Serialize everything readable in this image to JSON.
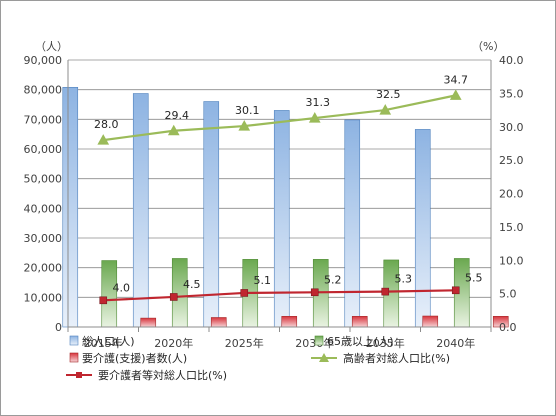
{
  "chart_data": {
    "type": "bar",
    "categories": [
      "2015年",
      "2020年",
      "2025年",
      "2030年",
      "2035年",
      "2040年"
    ],
    "left_unit": "（人）",
    "right_unit": "（%）",
    "ylim_left": [
      0,
      90000
    ],
    "ylim_right": [
      0,
      40
    ],
    "yticks_left": [
      "0",
      "10,000",
      "20,000",
      "30,000",
      "40,000",
      "50,000",
      "60,000",
      "70,000",
      "80,000",
      "90,000"
    ],
    "yticks_right": [
      "0.0",
      "5.0",
      "10.0",
      "15.0",
      "20.0",
      "25.0",
      "30.0",
      "35.0",
      "40.0"
    ],
    "grid": true,
    "legend_position": "bottom",
    "bar_series": [
      {
        "name": "総人口(人)",
        "color": "#8eb4e3",
        "values": [
          80800,
          78700,
          76000,
          73000,
          69800,
          66600
        ]
      },
      {
        "name": "65歳以上(人)",
        "color": "#77b05c",
        "values": [
          22400,
          23100,
          22800,
          22800,
          22600,
          23100
        ]
      },
      {
        "name": "要介護(支援)者数(人)",
        "color": "#e0525a",
        "values": [
          3000,
          3200,
          3600,
          3600,
          3700,
          3600
        ]
      }
    ],
    "line_series": [
      {
        "name": "高齢者対総人口比(%)",
        "color": "#9bbb59",
        "marker": "triangle",
        "values": [
          28.0,
          29.4,
          30.1,
          31.3,
          32.5,
          34.7
        ],
        "labels": [
          "28.0",
          "29.4",
          "30.1",
          "31.3",
          "32.5",
          "34.7"
        ]
      },
      {
        "name": "要介護者等対総人口比(%)",
        "color": "#c0262f",
        "marker": "square",
        "values": [
          4.0,
          4.5,
          5.1,
          5.2,
          5.3,
          5.5
        ],
        "labels": [
          "4.0",
          "4.5",
          "5.1",
          "5.2",
          "5.3",
          "5.5"
        ]
      }
    ]
  }
}
